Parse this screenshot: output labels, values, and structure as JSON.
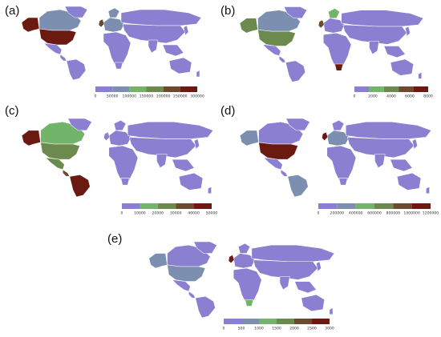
{
  "colors": {
    "base": "#8a7fd0",
    "low": "#7d8fb1",
    "mid": "#72b46a",
    "midhigh": "#6d8a4e",
    "high": "#6b4a2e",
    "max": "#6b1a12",
    "border": "#ffffff"
  },
  "panels": [
    {
      "label": "(a)",
      "legend_ticks": [
        "0",
        "50000",
        "100000",
        "150000",
        "200000",
        "250000",
        "300000"
      ],
      "legend_colors": [
        "#8a7fd0",
        "#7d8fb1",
        "#72b46a",
        "#6d8a4e",
        "#6b4a2e",
        "#6b1a12"
      ],
      "fills": {
        "alaska": "#6b1a12",
        "canada": "#7d8fb1",
        "greenland": "#8a7fd0",
        "usa": "#6b1a12",
        "mexico": "#8a7fd0",
        "centam": "#8a7fd0",
        "southam": "#8a7fd0",
        "europe": "#7d8fb1",
        "uk": "#6b4a2e",
        "scandinavia": "#7d8fb1",
        "africa": "#8a7fd0",
        "southafrica": "#8a7fd0",
        "russia": "#8a7fd0",
        "asia": "#8a7fd0",
        "india": "#8a7fd0",
        "seasia": "#8a7fd0",
        "japan": "#8a7fd0",
        "australia": "#8a7fd0",
        "nz": "#8a7fd0"
      }
    },
    {
      "label": "(b)",
      "legend_ticks": [
        "0",
        "2000",
        "4000",
        "6000",
        "8000"
      ],
      "legend_colors": [
        "#8a7fd0",
        "#72b46a",
        "#6d8a4e",
        "#6b4a2e",
        "#6b1a12"
      ],
      "fills": {
        "alaska": "#6d8a4e",
        "canada": "#7d8fb1",
        "greenland": "#8a7fd0",
        "usa": "#6d8a4e",
        "mexico": "#8a7fd0",
        "centam": "#8a7fd0",
        "southam": "#8a7fd0",
        "europe": "#8a7fd0",
        "uk": "#6b4a2e",
        "scandinavia": "#72b46a",
        "africa": "#8a7fd0",
        "southafrica": "#6b1a12",
        "russia": "#8a7fd0",
        "asia": "#8a7fd0",
        "india": "#8a7fd0",
        "seasia": "#8a7fd0",
        "japan": "#8a7fd0",
        "australia": "#8a7fd0",
        "nz": "#8a7fd0"
      }
    },
    {
      "label": "(c)",
      "legend_ticks": [
        "0",
        "10000",
        "20000",
        "30000",
        "40000",
        "50000"
      ],
      "legend_colors": [
        "#8a7fd0",
        "#72b46a",
        "#6d8a4e",
        "#6b4a2e",
        "#6b1a12"
      ],
      "fills": {
        "alaska": "#6b1a12",
        "canada": "#72b46a",
        "greenland": "#8a7fd0",
        "usa": "#6d8a4e",
        "mexico": "#6d8a4e",
        "centam": "#6b4a2e",
        "southam": "#6b1a12",
        "europe": "#8a7fd0",
        "uk": "#8a7fd0",
        "scandinavia": "#8a7fd0",
        "africa": "#8a7fd0",
        "southafrica": "#8a7fd0",
        "russia": "#8a7fd0",
        "asia": "#8a7fd0",
        "india": "#8a7fd0",
        "seasia": "#8a7fd0",
        "japan": "#8a7fd0",
        "australia": "#8a7fd0",
        "nz": "#8a7fd0"
      }
    },
    {
      "label": "(d)",
      "legend_ticks": [
        "0",
        "200000",
        "400000",
        "600000",
        "800000",
        "1000000",
        "1200000"
      ],
      "legend_colors": [
        "#8a7fd0",
        "#7d8fb1",
        "#72b46a",
        "#6d8a4e",
        "#6b4a2e",
        "#6b1a12"
      ],
      "fills": {
        "alaska": "#7d8fb1",
        "canada": "#8a7fd0",
        "greenland": "#8a7fd0",
        "usa": "#6b1a12",
        "mexico": "#8a7fd0",
        "centam": "#8a7fd0",
        "southam": "#7d8fb1",
        "europe": "#7d8fb1",
        "uk": "#6b1a12",
        "scandinavia": "#8a7fd0",
        "africa": "#8a7fd0",
        "southafrica": "#8a7fd0",
        "russia": "#8a7fd0",
        "asia": "#8a7fd0",
        "india": "#8a7fd0",
        "seasia": "#8a7fd0",
        "japan": "#8a7fd0",
        "australia": "#8a7fd0",
        "nz": "#8a7fd0"
      }
    },
    {
      "label": "(e)",
      "legend_ticks": [
        "0",
        "500",
        "1000",
        "1500",
        "2000",
        "2500",
        "3000"
      ],
      "legend_colors": [
        "#8a7fd0",
        "#7d8fb1",
        "#72b46a",
        "#6d8a4e",
        "#6b4a2e",
        "#6b1a12"
      ],
      "fills": {
        "alaska": "#7d8fb1",
        "canada": "#8a7fd0",
        "greenland": "#8a7fd0",
        "usa": "#7d8fb1",
        "mexico": "#8a7fd0",
        "centam": "#8a7fd0",
        "southam": "#8a7fd0",
        "europe": "#8a7fd0",
        "uk": "#6b1a12",
        "scandinavia": "#8a7fd0",
        "africa": "#8a7fd0",
        "southafrica": "#72b46a",
        "russia": "#8a7fd0",
        "asia": "#8a7fd0",
        "india": "#8a7fd0",
        "seasia": "#8a7fd0",
        "japan": "#8a7fd0",
        "australia": "#8a7fd0",
        "nz": "#8a7fd0"
      }
    }
  ]
}
